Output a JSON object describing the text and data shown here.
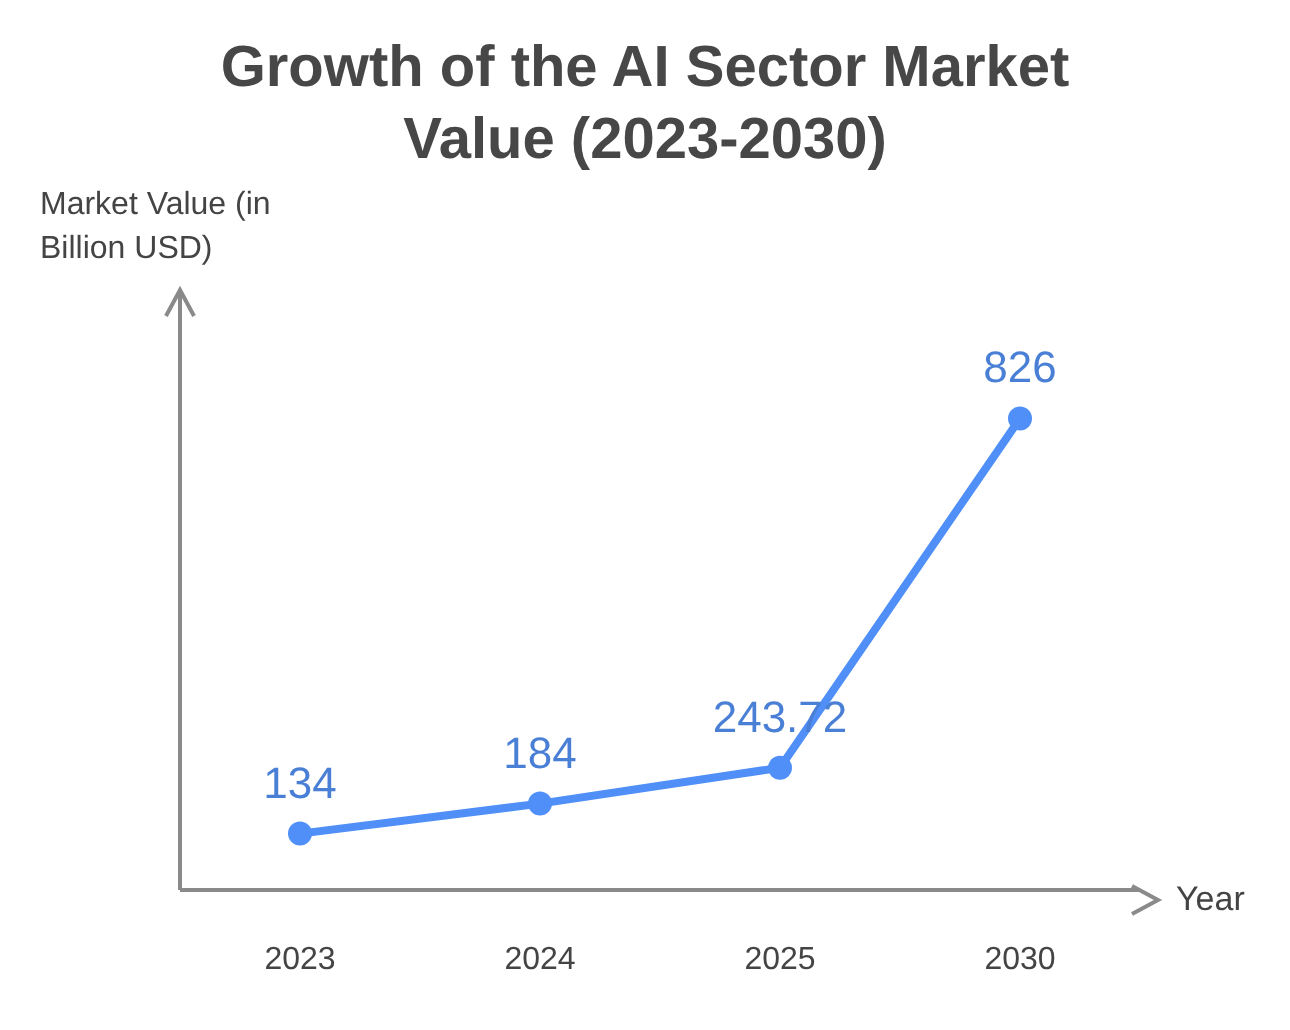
{
  "chart_data": {
    "type": "line",
    "title": "Growth of the AI Sector Market Value (2023-2030)",
    "xlabel": "Year",
    "ylabel": "Market Value (in Billion USD)",
    "categories": [
      "2023",
      "2024",
      "2025",
      "2030"
    ],
    "series": [
      {
        "color": "#4f8ff7",
        "values": [
          134,
          184,
          243.72,
          826
        ]
      }
    ],
    "ylim": [
      40,
      1040
    ],
    "data_labels": true,
    "tick_labels": "x",
    "grid": false,
    "marker": "circle",
    "line_style": "solid"
  }
}
